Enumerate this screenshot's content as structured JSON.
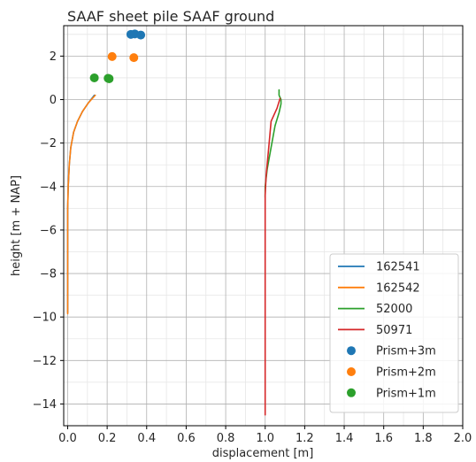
{
  "chart_data": {
    "type": "line",
    "title": "SAAF sheet pile  SAAF ground",
    "xlabel": "displacement [m]",
    "ylabel": "height [m + NAP]",
    "xlim": [
      -0.02,
      2.0
    ],
    "ylim": [
      -15.0,
      3.4
    ],
    "x_ticks": [
      0.0,
      0.2,
      0.4,
      0.6,
      0.8,
      1.0,
      1.2,
      1.4,
      1.6,
      1.8,
      2.0
    ],
    "x_tick_labels": [
      "0.0",
      "0.2",
      "0.4",
      "0.6",
      "0.8",
      "1.0",
      "1.2",
      "1.4",
      "1.6",
      "1.8",
      "2.0"
    ],
    "y_ticks": [
      2,
      0,
      -2,
      -4,
      -6,
      -8,
      -10,
      -12,
      -14
    ],
    "y_tick_labels": [
      "2",
      "0",
      "−2",
      "−4",
      "−6",
      "−8",
      "−10",
      "−12",
      "−14"
    ],
    "grid": true,
    "minor_grid": true,
    "legend_position": "lower-right",
    "series": [
      {
        "name": "162541",
        "kind": "line",
        "color": "#1f77b4",
        "x": [
          0.0,
          0.0,
          0.0,
          0.003,
          0.008,
          0.016,
          0.03,
          0.05,
          0.075,
          0.105,
          0.135
        ],
        "y": [
          -9.8,
          -7.0,
          -5.0,
          -4.0,
          -3.0,
          -2.2,
          -1.5,
          -1.0,
          -0.55,
          -0.15,
          0.2
        ]
      },
      {
        "name": "162542",
        "kind": "line",
        "color": "#ff7f0e",
        "x": [
          0.0,
          0.0,
          0.0,
          0.003,
          0.008,
          0.016,
          0.03,
          0.05,
          0.075,
          0.105,
          0.14
        ],
        "y": [
          -9.85,
          -7.0,
          -5.0,
          -4.0,
          -3.0,
          -2.2,
          -1.5,
          -1.0,
          -0.55,
          -0.15,
          0.2
        ]
      },
      {
        "name": "52000",
        "kind": "line",
        "color": "#2ca02c",
        "x": [
          1.0,
          1.0,
          1.01,
          1.03,
          1.05,
          1.07,
          1.08,
          1.08,
          1.07,
          1.07
        ],
        "y": [
          -4.5,
          -4.0,
          -3.2,
          -2.2,
          -1.2,
          -0.6,
          -0.2,
          0.0,
          0.2,
          0.45
        ]
      },
      {
        "name": "50971",
        "kind": "line",
        "color": "#d62728",
        "x": [
          1.0,
          1.0,
          1.0,
          1.0,
          1.0,
          1.0,
          1.0,
          1.005,
          1.02,
          1.03,
          1.06,
          1.075
        ],
        "y": [
          -14.5,
          -12.0,
          -10.0,
          -8.0,
          -6.0,
          -5.0,
          -4.4,
          -3.5,
          -2.0,
          -1.0,
          -0.4,
          0.05
        ]
      },
      {
        "name": "Prism+3m",
        "kind": "scatter",
        "color": "#1f77b4",
        "x": [
          0.32,
          0.34,
          0.37
        ],
        "y": [
          3.0,
          3.02,
          2.97
        ]
      },
      {
        "name": "Prism+2m",
        "kind": "scatter",
        "color": "#ff7f0e",
        "x": [
          0.225,
          0.335
        ],
        "y": [
          1.98,
          1.93
        ]
      },
      {
        "name": "Prism+1m",
        "kind": "scatter",
        "color": "#2ca02c",
        "x": [
          0.135,
          0.205,
          0.21
        ],
        "y": [
          1.0,
          0.98,
          0.96
        ]
      }
    ]
  }
}
